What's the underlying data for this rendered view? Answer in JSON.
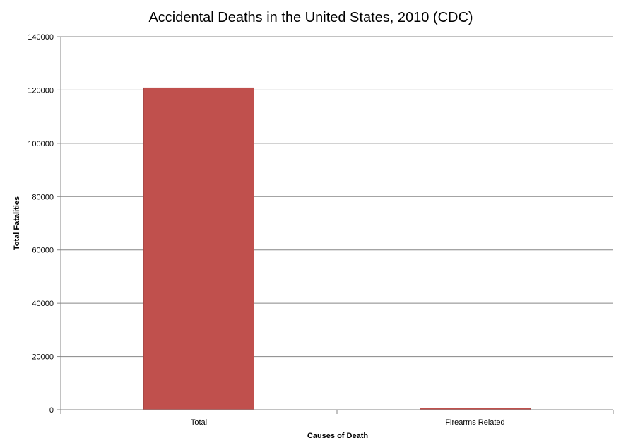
{
  "chart_data": {
    "type": "bar",
    "title": "Accidental Deaths in the United States, 2010 (CDC)",
    "xlabel": "Causes of Death",
    "ylabel": "Total Fatalities",
    "categories": [
      "Total",
      "Firearms Related"
    ],
    "values": [
      120859,
      606
    ],
    "ylim": [
      0,
      140000
    ],
    "yticks": [
      0,
      20000,
      40000,
      60000,
      80000,
      100000,
      120000,
      140000
    ],
    "grid": true,
    "legend": "none",
    "bar_color": "#C0504D",
    "gridline_color": "#868686"
  }
}
